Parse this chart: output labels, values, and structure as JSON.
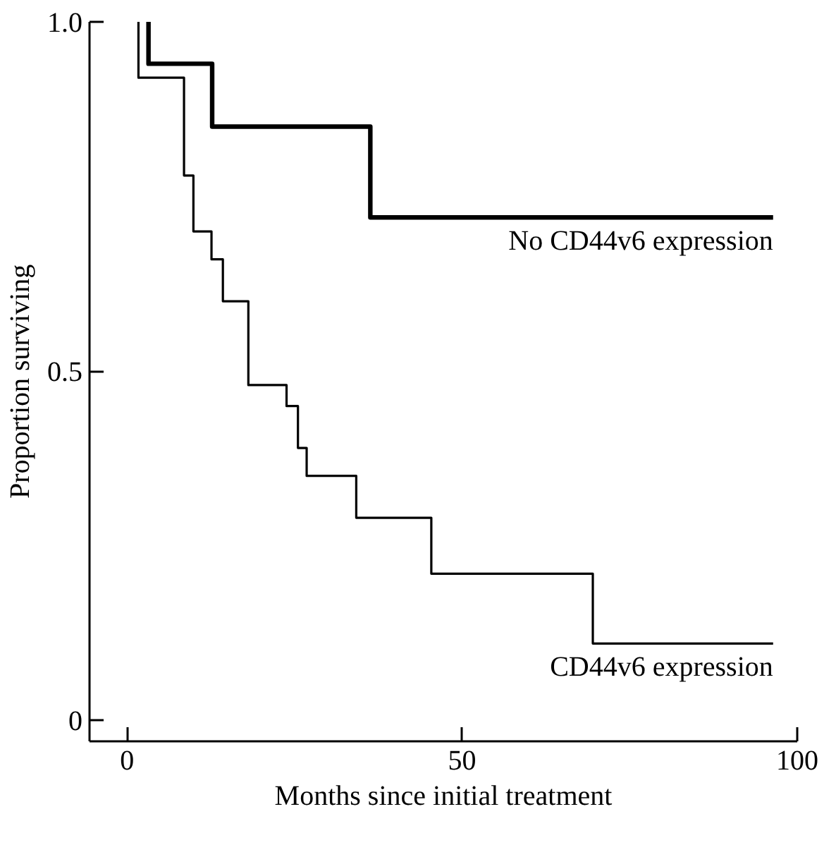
{
  "chart_data": {
    "type": "step",
    "xlabel": "Months since initial treatment",
    "ylabel": "Proportion surviving",
    "xlim": [
      -5.6,
      100
    ],
    "ylim": [
      -0.03,
      1.0
    ],
    "xticks": [
      0,
      50,
      100
    ],
    "yticks": [
      {
        "value": 0,
        "label": "0"
      },
      {
        "value": 0.5,
        "label": "0.5"
      },
      {
        "value": 1,
        "label": "1.0"
      }
    ],
    "grid": false,
    "series": [
      {
        "name": "No CD44v6 expression",
        "color": "#000000",
        "x": [
          3.2,
          12.7,
          36.3,
          96.4
        ],
        "values": [
          1.0,
          0.94,
          0.85,
          0.72
        ]
      },
      {
        "name": "CD44v6 expression",
        "color": "#000000",
        "x": [
          1.7,
          8.5,
          9.9,
          12.6,
          14.3,
          18.1,
          23.8,
          25.5,
          26.8,
          34.2,
          45.4,
          69.5,
          96.4
        ],
        "values": [
          1.0,
          0.92,
          0.78,
          0.7,
          0.66,
          0.6,
          0.48,
          0.45,
          0.39,
          0.35,
          0.29,
          0.21,
          0.11
        ]
      }
    ]
  }
}
